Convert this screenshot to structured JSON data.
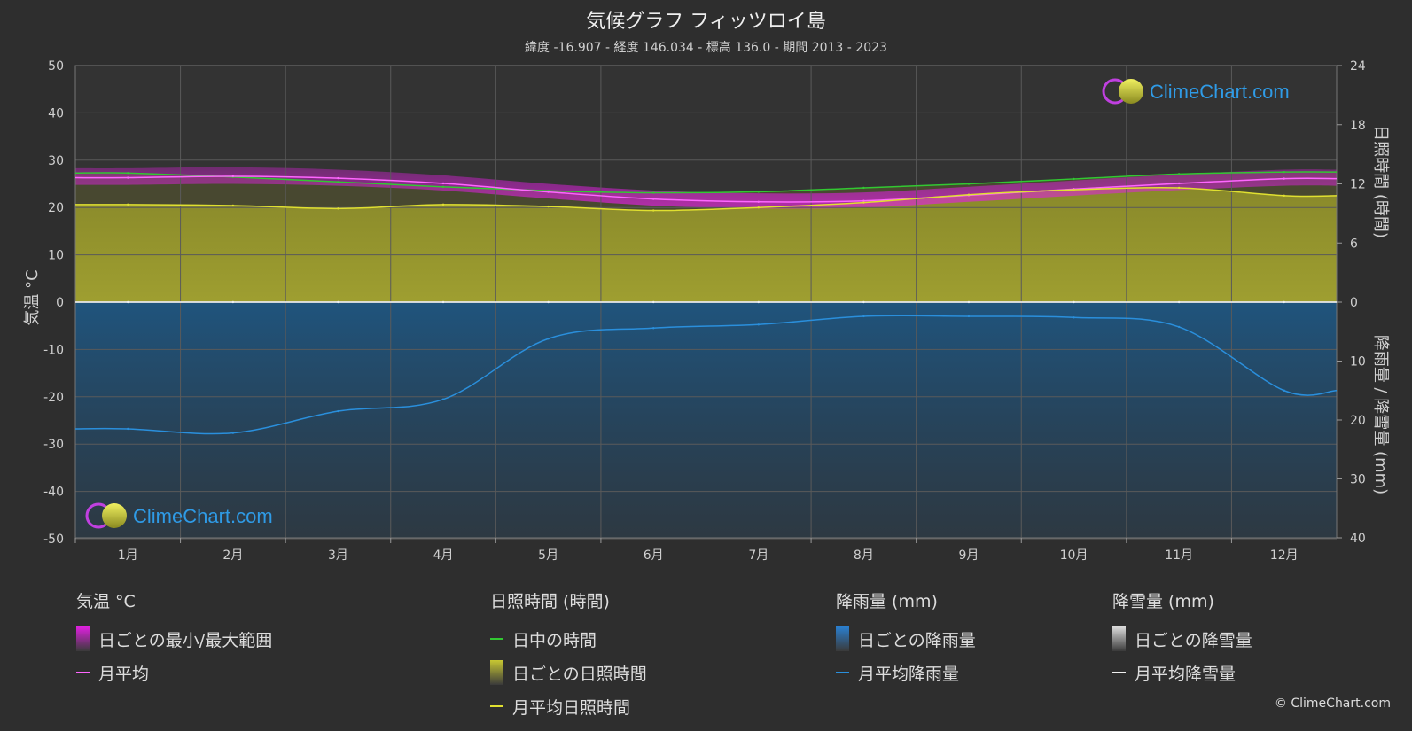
{
  "header": {
    "title": "気候グラフ フィッツロイ島",
    "subtitle": "緯度 -16.907 - 経度 146.034 - 標高 136.0 - 期間 2013 - 2023"
  },
  "axes": {
    "left_title": "気温 °C",
    "right_top_title": "日照時間 (時間)",
    "right_bottom_title": "降雨量 / 降雪量 (mm)"
  },
  "logo": {
    "text": "ClimeChart.com"
  },
  "chart_data": {
    "type": "area",
    "categories": [
      "1月",
      "2月",
      "3月",
      "4月",
      "5月",
      "6月",
      "7月",
      "8月",
      "9月",
      "10月",
      "11月",
      "12月"
    ],
    "temp_axis": {
      "ticks": [
        50,
        40,
        30,
        20,
        10,
        0,
        -10,
        -20,
        -30,
        -40,
        -50
      ],
      "range": [
        -50,
        50
      ]
    },
    "sunshine_axis": {
      "ticks": [
        24,
        18,
        12,
        6,
        0
      ],
      "range": [
        0,
        24
      ]
    },
    "precip_axis": {
      "ticks": [
        0,
        10,
        20,
        30,
        40
      ],
      "range": [
        0,
        40
      ]
    },
    "grid": true,
    "series": [
      {
        "name": "日中の時間",
        "axis": "sunshine",
        "color": "#32c832",
        "values": [
          13.1,
          12.7,
          12.2,
          11.7,
          11.3,
          11.1,
          11.2,
          11.6,
          12.0,
          12.5,
          13.0,
          13.2
        ]
      },
      {
        "name": "月平均",
        "axis": "temperature",
        "color": "#ff66ff",
        "values": [
          26.3,
          26.6,
          26.2,
          25.1,
          23.3,
          21.8,
          21.2,
          21.4,
          22.6,
          23.9,
          25.1,
          26.1
        ]
      },
      {
        "name": "月平均日照時間",
        "axis": "sunshine",
        "color": "#e0e030",
        "values": [
          9.9,
          9.8,
          9.5,
          9.9,
          9.7,
          9.3,
          9.6,
          10.1,
          10.9,
          11.4,
          11.6,
          10.8
        ]
      },
      {
        "name": "月平均降雨量",
        "axis": "precipitation",
        "color": "#2a8fdc",
        "values": [
          21.5,
          22.2,
          18.5,
          16.5,
          6.2,
          4.4,
          3.8,
          2.4,
          2.4,
          2.6,
          4.2,
          15.0
        ]
      },
      {
        "name": "月平均降雪量",
        "axis": "precipitation",
        "color": "#f0f0f0",
        "values": [
          0,
          0,
          0,
          0,
          0,
          0,
          0,
          0,
          0,
          0,
          0,
          0
        ]
      }
    ],
    "temp_band": {
      "name": "日ごとの最小/最大範囲",
      "color": "#e020e0",
      "min": [
        24.8,
        25.0,
        24.6,
        23.6,
        21.9,
        20.4,
        19.8,
        20.0,
        21.2,
        22.5,
        23.7,
        24.6
      ],
      "max": [
        28.3,
        28.5,
        28.0,
        26.8,
        25.0,
        23.6,
        23.0,
        23.2,
        24.4,
        25.7,
        27.0,
        28.0
      ]
    }
  },
  "legend": {
    "groups": [
      {
        "title": "気温 °C",
        "items": [
          {
            "label": "日ごとの最小/最大範囲",
            "swatch": "box",
            "color": "#e020e0"
          },
          {
            "label": "月平均",
            "swatch": "line",
            "color": "#ff66ff"
          }
        ]
      },
      {
        "title": "日照時間 (時間)",
        "items": [
          {
            "label": "日中の時間",
            "swatch": "line",
            "color": "#32c832"
          },
          {
            "label": "日ごとの日照時間",
            "swatch": "box",
            "color": "#c8c832"
          },
          {
            "label": "月平均日照時間",
            "swatch": "line",
            "color": "#e0e030"
          }
        ]
      },
      {
        "title": "降雨量 (mm)",
        "items": [
          {
            "label": "日ごとの降雨量",
            "swatch": "box",
            "color": "#2a7fd0"
          },
          {
            "label": "月平均降雨量",
            "swatch": "line",
            "color": "#2a8fdc"
          }
        ]
      },
      {
        "title": "降雪量 (mm)",
        "items": [
          {
            "label": "日ごとの降雪量",
            "swatch": "box",
            "color": "#dddddd"
          },
          {
            "label": "月平均降雪量",
            "swatch": "line",
            "color": "#f0f0f0"
          }
        ]
      }
    ]
  },
  "footer": {
    "copyright": "© ClimeChart.com"
  }
}
